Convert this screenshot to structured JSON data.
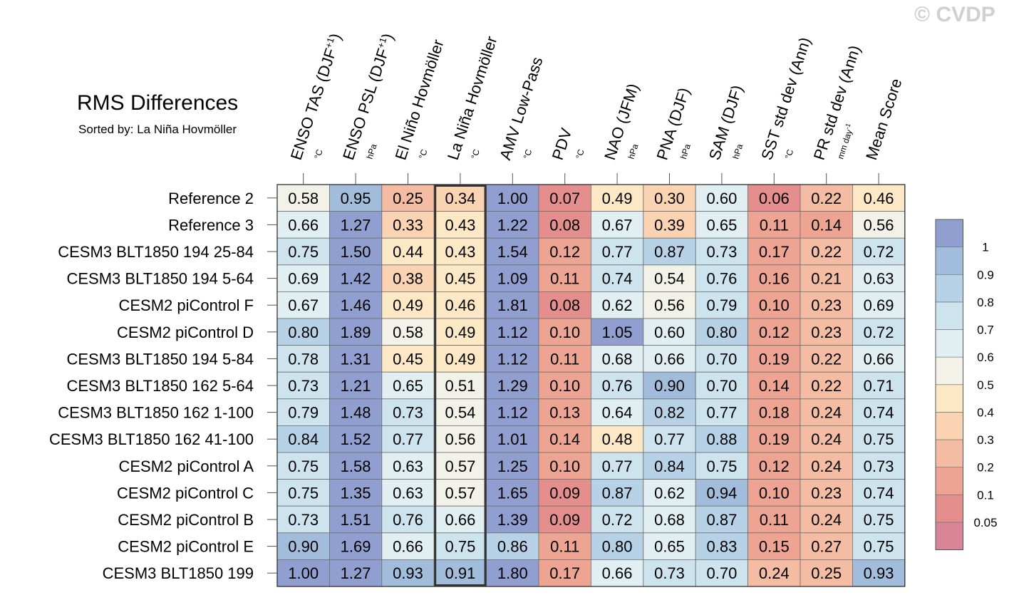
{
  "title": "RMS Differences",
  "subtitle": "Sorted by: La Niña Hovmöller",
  "watermark": "© CVDP",
  "chart_data": {
    "type": "heatmap",
    "highlighted_column": "La Niña Hovmöller",
    "columns": [
      {
        "label": "ENSO TAS (DJF",
        "sup": "+1",
        "tail": ")",
        "unit": "°C"
      },
      {
        "label": "ENSO PSL (DJF",
        "sup": "+1",
        "tail": ")",
        "unit": "hPa"
      },
      {
        "label": "El Niño Hovmöller",
        "sup": "",
        "tail": "",
        "unit": "°C"
      },
      {
        "label": "La Niña Hovmöller",
        "sup": "",
        "tail": "",
        "unit": "°C"
      },
      {
        "label": "AMV Low-Pass",
        "sup": "",
        "tail": "",
        "unit": "°C"
      },
      {
        "label": "PDV",
        "sup": "",
        "tail": "",
        "unit": "°C"
      },
      {
        "label": "NAO (JFM)",
        "sup": "",
        "tail": "",
        "unit": "hPa"
      },
      {
        "label": "PNA (DJF)",
        "sup": "",
        "tail": "",
        "unit": "hPa"
      },
      {
        "label": "SAM (DJF)",
        "sup": "",
        "tail": "",
        "unit": "hPa"
      },
      {
        "label": "SST std dev (Ann)",
        "sup": "",
        "tail": "",
        "unit": "°C"
      },
      {
        "label": "PR std dev (Ann)",
        "sup": "",
        "tail": "",
        "unit": "mm day",
        "unit_sup": "-1"
      },
      {
        "label": "Mean Score",
        "sup": "",
        "tail": "",
        "unit": ""
      }
    ],
    "rows": [
      {
        "name": "Reference 2",
        "values": [
          0.58,
          0.95,
          0.25,
          0.34,
          1.0,
          0.07,
          0.49,
          0.3,
          0.6,
          0.06,
          0.22,
          0.46
        ]
      },
      {
        "name": "Reference 3",
        "values": [
          0.66,
          1.27,
          0.33,
          0.43,
          1.22,
          0.08,
          0.67,
          0.39,
          0.65,
          0.11,
          0.14,
          0.56
        ]
      },
      {
        "name": "CESM3 BLT1850 194 25-84",
        "values": [
          0.75,
          1.5,
          0.44,
          0.43,
          1.54,
          0.12,
          0.77,
          0.87,
          0.73,
          0.17,
          0.22,
          0.72
        ]
      },
      {
        "name": "CESM3 BLT1850 194 5-64",
        "values": [
          0.69,
          1.42,
          0.38,
          0.45,
          1.09,
          0.11,
          0.74,
          0.54,
          0.76,
          0.16,
          0.21,
          0.63
        ]
      },
      {
        "name": "CESM2 piControl F",
        "values": [
          0.67,
          1.46,
          0.49,
          0.46,
          1.81,
          0.08,
          0.62,
          0.56,
          0.79,
          0.1,
          0.23,
          0.69
        ]
      },
      {
        "name": "CESM2 piControl D",
        "values": [
          0.8,
          1.89,
          0.58,
          0.49,
          1.12,
          0.1,
          1.05,
          0.6,
          0.8,
          0.12,
          0.23,
          0.72
        ]
      },
      {
        "name": "CESM3 BLT1850 194 5-84",
        "values": [
          0.78,
          1.31,
          0.45,
          0.49,
          1.12,
          0.11,
          0.68,
          0.66,
          0.7,
          0.19,
          0.22,
          0.66
        ]
      },
      {
        "name": "CESM3 BLT1850 162 5-64",
        "values": [
          0.73,
          1.21,
          0.65,
          0.51,
          1.29,
          0.1,
          0.76,
          0.9,
          0.7,
          0.14,
          0.22,
          0.71
        ]
      },
      {
        "name": "CESM3 BLT1850 162 1-100",
        "values": [
          0.79,
          1.48,
          0.73,
          0.54,
          1.12,
          0.13,
          0.64,
          0.82,
          0.77,
          0.18,
          0.24,
          0.74
        ]
      },
      {
        "name": "CESM3 BLT1850 162 41-100",
        "values": [
          0.84,
          1.52,
          0.77,
          0.56,
          1.01,
          0.14,
          0.48,
          0.77,
          0.88,
          0.19,
          0.24,
          0.75
        ]
      },
      {
        "name": "CESM2 piControl A",
        "values": [
          0.75,
          1.58,
          0.63,
          0.57,
          1.25,
          0.1,
          0.77,
          0.84,
          0.75,
          0.12,
          0.24,
          0.73
        ]
      },
      {
        "name": "CESM2 piControl C",
        "values": [
          0.75,
          1.35,
          0.63,
          0.57,
          1.65,
          0.09,
          0.87,
          0.62,
          0.94,
          0.1,
          0.23,
          0.74
        ]
      },
      {
        "name": "CESM2 piControl B",
        "values": [
          0.73,
          1.51,
          0.76,
          0.66,
          1.39,
          0.09,
          0.72,
          0.68,
          0.87,
          0.11,
          0.24,
          0.75
        ]
      },
      {
        "name": "CESM2 piControl E",
        "values": [
          0.9,
          1.69,
          0.66,
          0.75,
          0.86,
          0.11,
          0.8,
          0.65,
          0.83,
          0.15,
          0.27,
          0.75
        ]
      },
      {
        "name": "CESM3 BLT1850 199",
        "values": [
          1.0,
          1.27,
          0.93,
          0.91,
          1.8,
          0.17,
          0.66,
          0.73,
          0.7,
          0.24,
          0.25,
          0.93
        ]
      }
    ],
    "colorbar": {
      "levels": [
        0.05,
        0.1,
        0.2,
        0.3,
        0.4,
        0.5,
        0.6,
        0.7,
        0.8,
        0.9,
        1
      ],
      "labels": [
        "0.05",
        "0.1",
        "0.2",
        "0.3",
        "0.4",
        "0.5",
        "0.6",
        "0.7",
        "0.8",
        "0.9",
        "1"
      ],
      "colors": [
        "#d98597",
        "#e48f8d",
        "#eea493",
        "#f4bca2",
        "#f9d3b2",
        "#fce8c4",
        "#f3f2e9",
        "#e1eff3",
        "#cde3ee",
        "#b7d2e6",
        "#a2bddc",
        "#909fcf"
      ]
    }
  }
}
